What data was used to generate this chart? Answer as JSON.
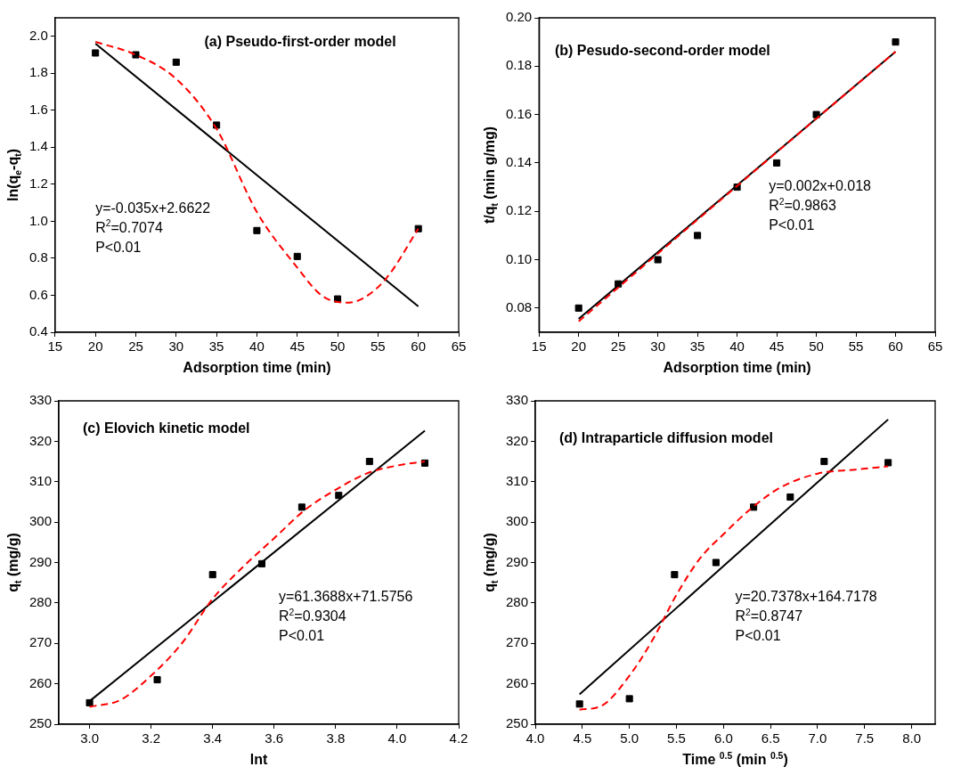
{
  "chart_data": [
    {
      "type": "scatter",
      "title": "(a) Pseudo-first-order model",
      "xlabel": "Adsorption time (min)",
      "ylabel": "ln(q$_{e}$-q$_{t}$)",
      "xlim": [
        15,
        65
      ],
      "xticks": [
        15,
        20,
        25,
        30,
        35,
        40,
        45,
        50,
        55,
        60,
        65
      ],
      "ylim": [
        0.4,
        2.1
      ],
      "yticks": [
        0.4,
        0.6,
        0.8,
        {
          "value": 1,
          "label": "1.0"
        },
        1.2,
        1.4,
        1.6,
        1.8,
        {
          "value": 2,
          "label": "2.0"
        }
      ],
      "annotations": [
        "y=-0.035x+2.6622",
        "R$^{2}$=0.7074",
        "P<0.01"
      ],
      "series": [
        {
          "type": "scatter",
          "marker": "square",
          "color": "#000000",
          "x": [
            20,
            25,
            30,
            35,
            40,
            45,
            50,
            60
          ],
          "values": [
            1.91,
            1.9,
            1.86,
            1.52,
            0.95,
            0.81,
            0.58,
            0.96
          ]
        },
        {
          "type": "line",
          "color": "#000000",
          "line_style": "solid",
          "x": [
            20,
            60
          ],
          "values": [
            1.96,
            0.54
          ]
        },
        {
          "type": "line",
          "color": "#ff0000",
          "line_style": "dashed",
          "x": [
            20,
            25,
            30,
            35,
            40,
            45,
            48,
            51,
            53,
            56,
            60
          ],
          "values": [
            1.97,
            1.9,
            1.77,
            1.5,
            1.05,
            0.75,
            0.6,
            0.56,
            0.58,
            0.69,
            0.96
          ]
        }
      ]
    },
    {
      "type": "scatter",
      "title": "(b) Pesudo-second-order model",
      "xlabel": "Adsorption time (min)",
      "ylabel": "t/q$_{t}$ (min g/mg)",
      "xlim": [
        15,
        65
      ],
      "xticks": [
        15,
        20,
        25,
        30,
        35,
        40,
        45,
        50,
        55,
        60,
        65
      ],
      "ylim": [
        0.07,
        0.2
      ],
      "yticks": [
        0.08,
        {
          "value": 0.1,
          "label": "0.10"
        },
        0.12,
        0.14,
        0.16,
        0.18,
        {
          "value": 0.2,
          "label": "0.20"
        }
      ],
      "annotations": [
        "y=0.002x+0.018",
        "R$^{2}$=0.9863",
        "P<0.01"
      ],
      "series": [
        {
          "type": "scatter",
          "marker": "square",
          "color": "#000000",
          "x": [
            20,
            25,
            30,
            35,
            40,
            45,
            50,
            60
          ],
          "values": [
            0.08,
            0.09,
            0.1,
            0.11,
            0.13,
            0.14,
            0.16,
            0.19
          ]
        },
        {
          "type": "line",
          "color": "#000000",
          "line_style": "solid",
          "x": [
            20,
            60
          ],
          "values": [
            0.0755,
            0.186
          ]
        },
        {
          "type": "line",
          "color": "#ff0000",
          "line_style": "dashed",
          "x": [
            20,
            40,
            60
          ],
          "values": [
            0.0745,
            0.1305,
            0.186
          ]
        }
      ]
    },
    {
      "type": "scatter",
      "title": "(c) Elovich kinetic model",
      "xlabel": "lnt",
      "ylabel": "q$_{t}$ (mg/g)",
      "xlim": [
        2.9,
        4.2
      ],
      "xticks": [
        {
          "value": 3,
          "label": "3.0"
        },
        3.2,
        3.4,
        3.6,
        3.8,
        {
          "value": 4,
          "label": "4.0"
        },
        4.2
      ],
      "ylim": [
        250,
        330
      ],
      "yticks": [
        250,
        260,
        270,
        280,
        290,
        300,
        310,
        320,
        330
      ],
      "annotations": [
        "y=61.3688x+71.5756",
        "R$^{2}$=0.9304",
        "P<0.01"
      ],
      "series": [
        {
          "type": "scatter",
          "marker": "square",
          "color": "#000000",
          "x": [
            3.0,
            3.22,
            3.4,
            3.56,
            3.69,
            3.81,
            3.91,
            4.09
          ],
          "values": [
            255.3,
            261,
            287,
            289.7,
            303.7,
            306.6,
            315,
            314.6
          ]
        },
        {
          "type": "line",
          "color": "#000000",
          "line_style": "solid",
          "x": [
            3.0,
            4.09
          ],
          "values": [
            255.7,
            322.6
          ]
        },
        {
          "type": "line",
          "color": "#ff0000",
          "line_style": "dashed",
          "x": [
            3.0,
            3.1,
            3.2,
            3.3,
            3.4,
            3.5,
            3.6,
            3.7,
            3.8,
            3.9,
            4.0,
            4.09
          ],
          "values": [
            254.3,
            256,
            262,
            270,
            281,
            289,
            296,
            303,
            308,
            312,
            314,
            315
          ]
        }
      ]
    },
    {
      "type": "scatter",
      "title": "(d) Intraparticle diffusion model",
      "xlabel": "Time $^{0.5}$ (min $^{0.5}$)",
      "ylabel": "q$_{t}$ (mg/g)",
      "xlim": [
        4,
        8.25
      ],
      "xticks": [
        {
          "value": 4,
          "label": "4.0"
        },
        4.5,
        {
          "value": 5,
          "label": "5.0"
        },
        5.5,
        {
          "value": 6,
          "label": "6.0"
        },
        6.5,
        {
          "value": 7,
          "label": "7.0"
        },
        7.5,
        {
          "value": 8,
          "label": "8.0"
        }
      ],
      "ylim": [
        250,
        330
      ],
      "yticks": [
        250,
        260,
        270,
        280,
        290,
        300,
        310,
        320,
        330
      ],
      "annotations": [
        "y=20.7378x+164.7178",
        "R$^{2}$=0.8747",
        "P<0.01"
      ],
      "series": [
        {
          "type": "scatter",
          "marker": "square",
          "color": "#000000",
          "x": [
            4.47,
            5.0,
            5.48,
            5.92,
            6.32,
            6.71,
            7.07,
            7.75
          ],
          "values": [
            255,
            256.3,
            287,
            290,
            303.7,
            306.2,
            315,
            314.7
          ]
        },
        {
          "type": "line",
          "color": "#000000",
          "line_style": "solid",
          "x": [
            4.47,
            7.75
          ],
          "values": [
            257.4,
            325.4
          ]
        },
        {
          "type": "line",
          "color": "#ff0000",
          "line_style": "dashed",
          "x": [
            4.47,
            4.7,
            5.0,
            5.25,
            5.5,
            5.75,
            6.0,
            6.3,
            6.6,
            7.0,
            7.4,
            7.75
          ],
          "values": [
            253.6,
            254.5,
            262,
            271,
            282,
            291,
            297,
            303.5,
            308.5,
            312,
            313,
            313.8
          ]
        }
      ]
    }
  ]
}
